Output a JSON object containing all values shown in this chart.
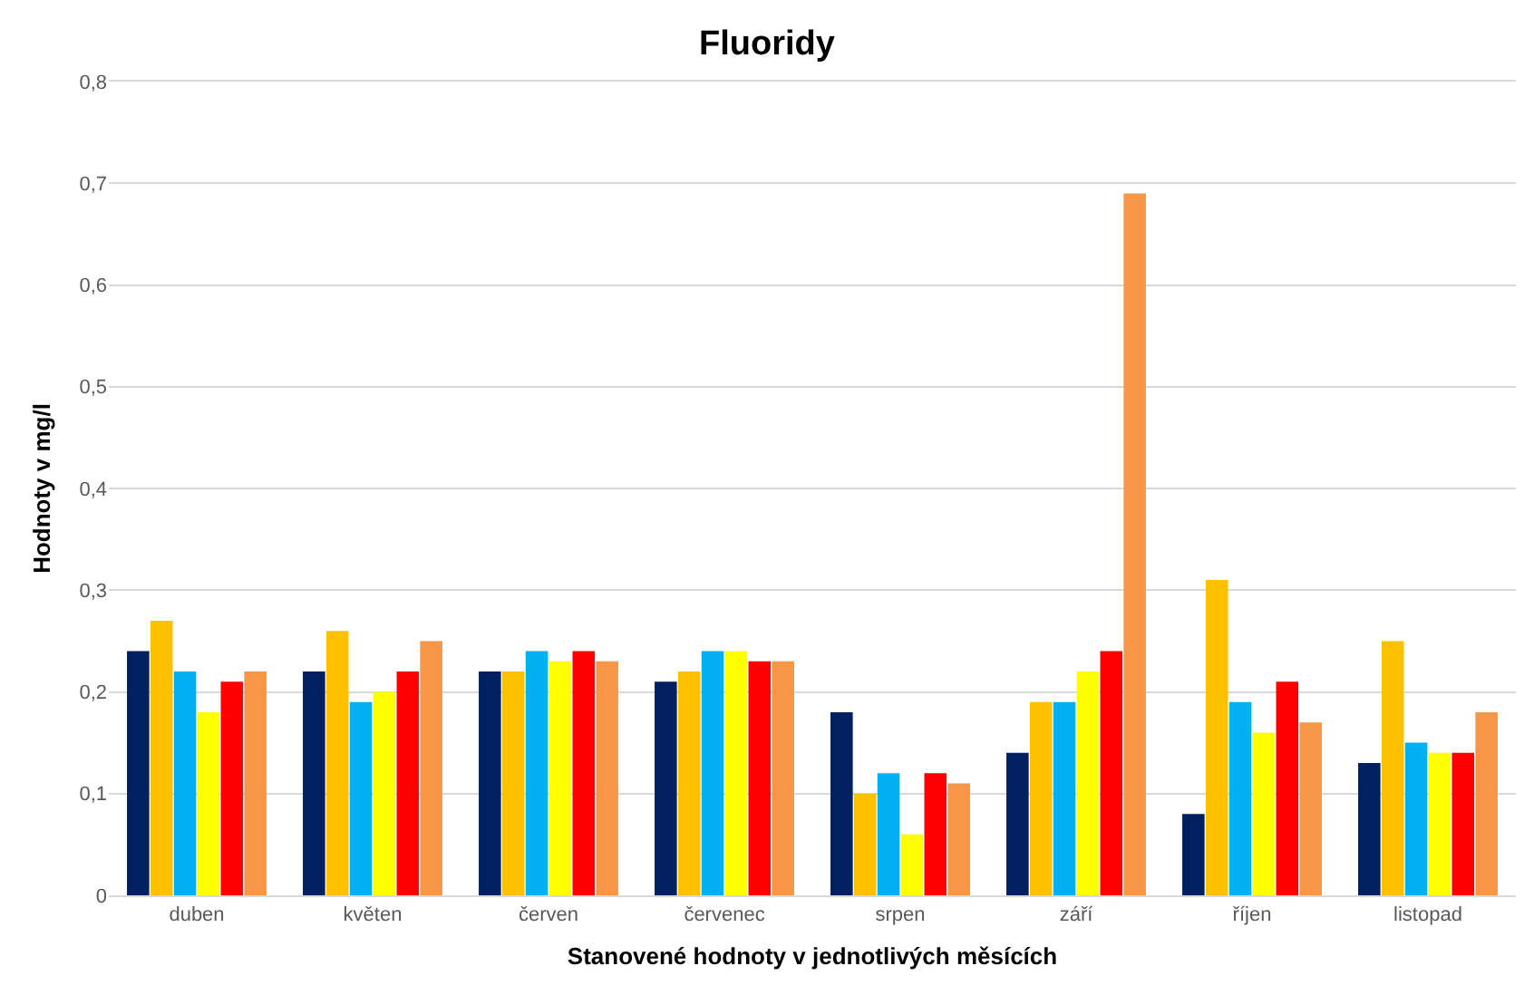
{
  "chart_data": {
    "type": "bar",
    "title": "Fluoridy",
    "xlabel": "Stanovené hodnoty v jednotlivých měsících",
    "ylabel": "Hodnoty v mg/l",
    "categories": [
      "duben",
      "květen",
      "červen",
      "červenec",
      "srpen",
      "září",
      "říjen",
      "listopad"
    ],
    "series": [
      {
        "color": "#002060",
        "values": [
          0.24,
          0.22,
          0.22,
          0.21,
          0.18,
          0.14,
          0.08,
          0.13
        ]
      },
      {
        "color": "#ffc000",
        "values": [
          0.27,
          0.26,
          0.22,
          0.22,
          0.1,
          0.19,
          0.31,
          0.25
        ]
      },
      {
        "color": "#00b0f0",
        "values": [
          0.22,
          0.19,
          0.24,
          0.24,
          0.12,
          0.19,
          0.19,
          0.15
        ]
      },
      {
        "color": "#ffff00",
        "values": [
          0.18,
          0.2,
          0.23,
          0.24,
          0.06,
          0.22,
          0.16,
          0.14
        ]
      },
      {
        "color": "#ff0000",
        "values": [
          0.21,
          0.22,
          0.24,
          0.23,
          0.12,
          0.24,
          0.21,
          0.14
        ]
      },
      {
        "color": "#f79646",
        "values": [
          0.22,
          0.25,
          0.23,
          0.23,
          0.11,
          0.69,
          0.17,
          0.18
        ]
      }
    ],
    "ylim": [
      0,
      0.8
    ],
    "yticks": [
      0,
      {
        "value": 0.1,
        "label": "0,1"
      },
      {
        "value": 0.2,
        "label": "0,2"
      },
      {
        "value": 0.3,
        "label": "0,3"
      },
      {
        "value": 0.4,
        "label": "0,4"
      },
      {
        "value": 0.5,
        "label": "0,5"
      },
      {
        "value": 0.6,
        "label": "0,6"
      },
      {
        "value": 0.7,
        "label": "0,7"
      },
      {
        "value": 0.8,
        "label": "0,8"
      }
    ],
    "grid": "y"
  }
}
